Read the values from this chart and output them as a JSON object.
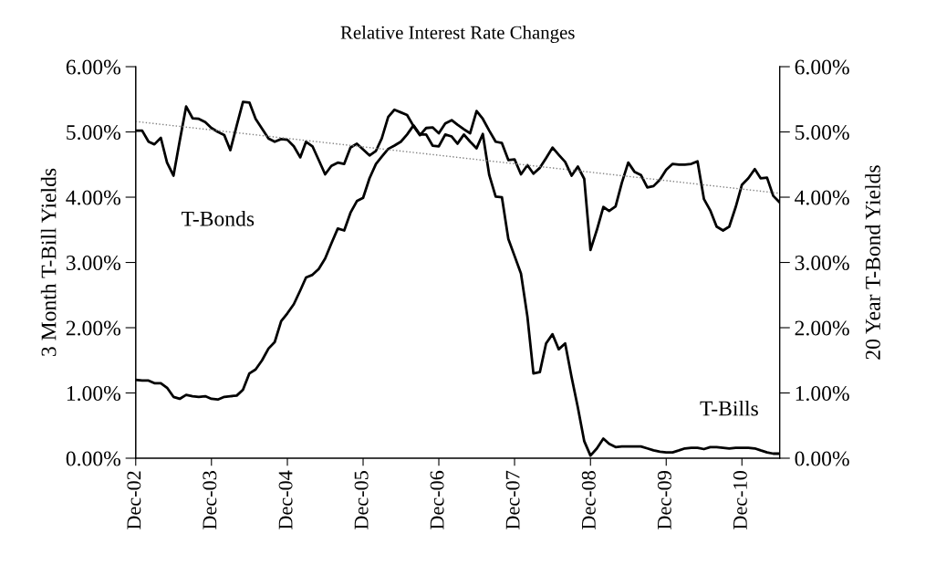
{
  "chart_data": {
    "type": "line",
    "title": "Relative Interest Rate Changes",
    "ylabel": "3 Month T-Bill Yields",
    "y2label": "20 Year T-Bond Yields",
    "x": [
      "2002-12",
      "2003-01",
      "2003-02",
      "2003-03",
      "2003-04",
      "2003-05",
      "2003-06",
      "2003-07",
      "2003-08",
      "2003-09",
      "2003-10",
      "2003-11",
      "2003-12",
      "2004-01",
      "2004-02",
      "2004-03",
      "2004-04",
      "2004-05",
      "2004-06",
      "2004-07",
      "2004-08",
      "2004-09",
      "2004-10",
      "2004-11",
      "2004-12",
      "2005-01",
      "2005-02",
      "2005-03",
      "2005-04",
      "2005-05",
      "2005-06",
      "2005-07",
      "2005-08",
      "2005-09",
      "2005-10",
      "2005-11",
      "2005-12",
      "2006-01",
      "2006-02",
      "2006-03",
      "2006-04",
      "2006-05",
      "2006-06",
      "2006-07",
      "2006-08",
      "2006-09",
      "2006-10",
      "2006-11",
      "2006-12",
      "2007-01",
      "2007-02",
      "2007-03",
      "2007-04",
      "2007-05",
      "2007-06",
      "2007-07",
      "2007-08",
      "2007-09",
      "2007-10",
      "2007-11",
      "2007-12",
      "2008-01",
      "2008-02",
      "2008-03",
      "2008-04",
      "2008-05",
      "2008-06",
      "2008-07",
      "2008-08",
      "2008-09",
      "2008-10",
      "2008-11",
      "2008-12",
      "2009-01",
      "2009-02",
      "2009-03",
      "2009-04",
      "2009-05",
      "2009-06",
      "2009-07",
      "2009-08",
      "2009-09",
      "2009-10",
      "2009-11",
      "2009-12",
      "2010-01",
      "2010-02",
      "2010-03",
      "2010-04",
      "2010-05",
      "2010-06",
      "2010-07",
      "2010-08",
      "2010-09",
      "2010-10",
      "2010-11",
      "2010-12",
      "2011-01",
      "2011-02",
      "2011-03",
      "2011-04",
      "2011-05",
      "2011-06"
    ],
    "series": [
      {
        "name": "T-Bills",
        "color": "#000000",
        "values": [
          1.2,
          1.19,
          1.19,
          1.15,
          1.15,
          1.08,
          0.94,
          0.91,
          0.97,
          0.95,
          0.94,
          0.95,
          0.91,
          0.9,
          0.94,
          0.95,
          0.96,
          1.05,
          1.3,
          1.36,
          1.5,
          1.68,
          1.78,
          2.1,
          2.22,
          2.36,
          2.57,
          2.77,
          2.81,
          2.9,
          3.06,
          3.29,
          3.52,
          3.49,
          3.76,
          3.94,
          3.99,
          4.29,
          4.51,
          4.62,
          4.74,
          4.79,
          4.85,
          4.96,
          5.1,
          4.96,
          4.96,
          4.79,
          4.78,
          4.96,
          4.93,
          4.82,
          4.96,
          4.85,
          4.75,
          4.97,
          4.34,
          4.01,
          4.0,
          3.36,
          3.1,
          2.83,
          2.17,
          1.3,
          1.32,
          1.76,
          1.9,
          1.67,
          1.76,
          1.24,
          0.78,
          0.26,
          0.04,
          0.15,
          0.3,
          0.22,
          0.17,
          0.18,
          0.18,
          0.18,
          0.18,
          0.15,
          0.12,
          0.1,
          0.09,
          0.09,
          0.12,
          0.15,
          0.16,
          0.16,
          0.14,
          0.17,
          0.17,
          0.16,
          0.15,
          0.16,
          0.16,
          0.16,
          0.15,
          0.12,
          0.09,
          0.07,
          0.07
        ]
      },
      {
        "name": "T-Bonds",
        "color": "#000000",
        "axis": "y2",
        "values": [
          5.02,
          5.02,
          4.85,
          4.81,
          4.91,
          4.53,
          4.33,
          4.86,
          5.39,
          5.21,
          5.2,
          5.15,
          5.06,
          5.0,
          4.95,
          4.72,
          5.1,
          5.46,
          5.45,
          5.2,
          5.05,
          4.9,
          4.85,
          4.89,
          4.88,
          4.78,
          4.61,
          4.85,
          4.78,
          4.57,
          4.35,
          4.48,
          4.53,
          4.51,
          4.76,
          4.82,
          4.73,
          4.64,
          4.71,
          4.9,
          5.23,
          5.34,
          5.3,
          5.26,
          5.09,
          4.95,
          5.06,
          5.07,
          4.98,
          5.13,
          5.18,
          5.11,
          5.04,
          4.98,
          5.32,
          5.2,
          5.02,
          4.85,
          4.83,
          4.57,
          4.58,
          4.35,
          4.49,
          4.36,
          4.45,
          4.6,
          4.76,
          4.65,
          4.54,
          4.33,
          4.47,
          4.28,
          3.19,
          3.5,
          3.85,
          3.79,
          3.86,
          4.22,
          4.53,
          4.39,
          4.34,
          4.15,
          4.17,
          4.27,
          4.42,
          4.51,
          4.5,
          4.5,
          4.51,
          4.55,
          3.97,
          3.8,
          3.55,
          3.49,
          3.55,
          3.85,
          4.19,
          4.29,
          4.43,
          4.29,
          4.3,
          4.02,
          3.92
        ]
      },
      {
        "type": "line",
        "color": "#808080",
        "axis": "y2",
        "line_style": "dotted",
        "x": [
          "2002-12",
          "2011-06"
        ],
        "values": [
          5.16,
          4.06
        ]
      }
    ],
    "xlim": [
      "2002-12",
      "2011-06"
    ],
    "xticks": [
      {
        "value": "2002-12",
        "label": "Dec-02"
      },
      {
        "value": "2003-12",
        "label": "Dec-03"
      },
      {
        "value": "2004-12",
        "label": "Dec-04"
      },
      {
        "value": "2005-12",
        "label": "Dec-05"
      },
      {
        "value": "2006-12",
        "label": "Dec-06"
      },
      {
        "value": "2007-12",
        "label": "Dec-07"
      },
      {
        "value": "2008-12",
        "label": "Dec-08"
      },
      {
        "value": "2009-12",
        "label": "Dec-09"
      },
      {
        "value": "2010-12",
        "label": "Dec-10"
      }
    ],
    "ylim": [
      0,
      6
    ],
    "yticks": [
      {
        "value": 0,
        "label": "0.00%"
      },
      {
        "value": 1,
        "label": "1.00%"
      },
      {
        "value": 2,
        "label": "2.00%"
      },
      {
        "value": 3,
        "label": "3.00%"
      },
      {
        "value": 4,
        "label": "4.00%"
      },
      {
        "value": 5,
        "label": "5.00%"
      },
      {
        "value": 6,
        "label": "6.00%"
      }
    ],
    "y2lim": [
      0,
      6
    ],
    "y2ticks": [
      {
        "value": 0,
        "label": "0.00%"
      },
      {
        "value": 1,
        "label": "1.00%"
      },
      {
        "value": 2,
        "label": "2.00%"
      },
      {
        "value": 3,
        "label": "3.00%"
      },
      {
        "value": 4,
        "label": "4.00%"
      },
      {
        "value": 5,
        "label": "5.00%"
      },
      {
        "value": 6,
        "label": "6.00%"
      }
    ],
    "line_style": "solid",
    "grid": false,
    "legend": false
  }
}
